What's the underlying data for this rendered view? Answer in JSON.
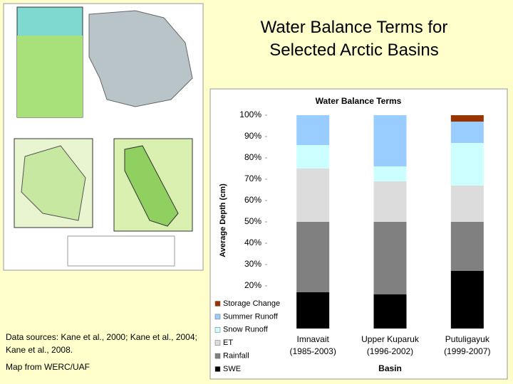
{
  "header": {
    "title_lines": [
      "Water Balance Terms for",
      "Selected Arctic Basins"
    ]
  },
  "notes": {
    "sources_lines": [
      "Data sources: Kane et al., 2000; Kane et al., 2004;",
      "Kane et al., 2008."
    ],
    "credit": "Map from WERC/UAF"
  },
  "chart_data": {
    "type": "stacked_bar",
    "title": "Water Balance Terms",
    "categories": [
      "Imnavait",
      "Upper Kuparuk",
      "Putuligayuk"
    ],
    "periods": [
      "(1985-2003)",
      "(1996-2002)",
      "(1999-2007)"
    ],
    "x_label": "Basin",
    "y_label": "Average Depth (cm)",
    "ylim": [
      0,
      100
    ],
    "yticks": [
      {
        "value": 20,
        "label": "20%"
      },
      {
        "value": 30,
        "label": "30%"
      },
      {
        "value": 40,
        "label": "40%"
      },
      {
        "value": 50,
        "label": "50%"
      },
      {
        "value": 60,
        "label": "60%"
      },
      {
        "value": 70,
        "label": "70%"
      },
      {
        "value": 80,
        "label": "80%"
      },
      {
        "value": 90,
        "label": "90%"
      },
      {
        "value": 100,
        "label": "100%"
      }
    ],
    "series": [
      {
        "name": "SWE",
        "color": "#000000",
        "values": [
          17,
          16,
          27
        ]
      },
      {
        "name": "Rainfall",
        "color": "#808080",
        "values": [
          33,
          34,
          23
        ]
      },
      {
        "name": "ET",
        "color": "#dcdcdc",
        "values": [
          25,
          19,
          17
        ]
      },
      {
        "name": "Snow Runoff",
        "color": "#ccffff",
        "values": [
          11,
          7,
          20
        ]
      },
      {
        "name": "Summer Runoff",
        "color": "#99ccff",
        "values": [
          14,
          24,
          10
        ]
      },
      {
        "name": "Storage Change",
        "color": "#993300",
        "values": [
          0,
          0,
          3
        ]
      }
    ]
  }
}
